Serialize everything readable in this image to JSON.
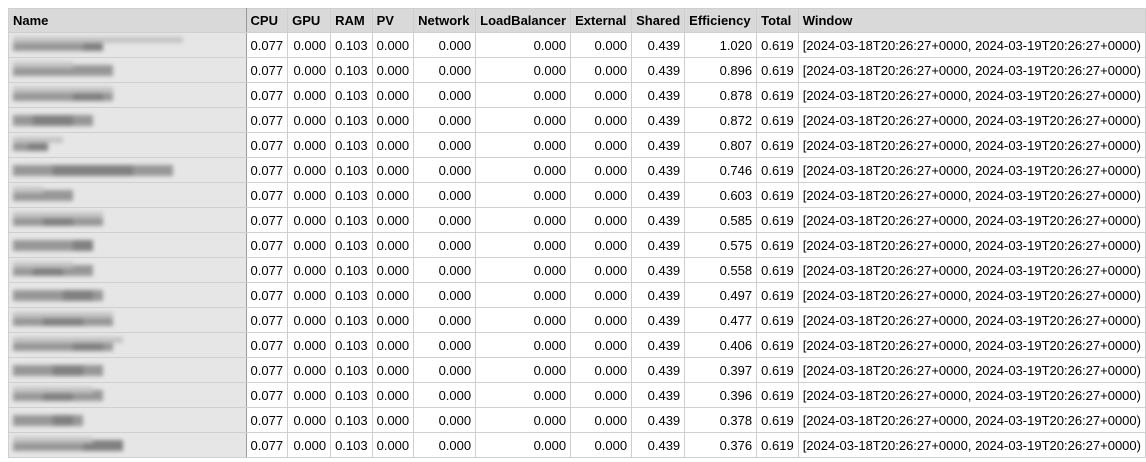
{
  "table": {
    "columns": [
      "Name",
      "CPU",
      "GPU",
      "RAM",
      "PV",
      "Network",
      "LoadBalancer",
      "External",
      "Shared",
      "Efficiency",
      "Total",
      "Window"
    ],
    "rows": [
      {
        "cpu": "0.077",
        "gpu": "0.000",
        "ram": "0.103",
        "pv": "0.000",
        "network": "0.000",
        "loadbalancer": "0.000",
        "external": "0.000",
        "shared": "0.439",
        "efficiency": "1.020",
        "total": "0.619",
        "window": "[2024-03-18T20:26:27+0000, 2024-03-19T20:26:27+0000)"
      },
      {
        "cpu": "0.077",
        "gpu": "0.000",
        "ram": "0.103",
        "pv": "0.000",
        "network": "0.000",
        "loadbalancer": "0.000",
        "external": "0.000",
        "shared": "0.439",
        "efficiency": "0.896",
        "total": "0.619",
        "window": "[2024-03-18T20:26:27+0000, 2024-03-19T20:26:27+0000)"
      },
      {
        "cpu": "0.077",
        "gpu": "0.000",
        "ram": "0.103",
        "pv": "0.000",
        "network": "0.000",
        "loadbalancer": "0.000",
        "external": "0.000",
        "shared": "0.439",
        "efficiency": "0.878",
        "total": "0.619",
        "window": "[2024-03-18T20:26:27+0000, 2024-03-19T20:26:27+0000)"
      },
      {
        "cpu": "0.077",
        "gpu": "0.000",
        "ram": "0.103",
        "pv": "0.000",
        "network": "0.000",
        "loadbalancer": "0.000",
        "external": "0.000",
        "shared": "0.439",
        "efficiency": "0.872",
        "total": "0.619",
        "window": "[2024-03-18T20:26:27+0000, 2024-03-19T20:26:27+0000)"
      },
      {
        "cpu": "0.077",
        "gpu": "0.000",
        "ram": "0.103",
        "pv": "0.000",
        "network": "0.000",
        "loadbalancer": "0.000",
        "external": "0.000",
        "shared": "0.439",
        "efficiency": "0.807",
        "total": "0.619",
        "window": "[2024-03-18T20:26:27+0000, 2024-03-19T20:26:27+0000)"
      },
      {
        "cpu": "0.077",
        "gpu": "0.000",
        "ram": "0.103",
        "pv": "0.000",
        "network": "0.000",
        "loadbalancer": "0.000",
        "external": "0.000",
        "shared": "0.439",
        "efficiency": "0.746",
        "total": "0.619",
        "window": "[2024-03-18T20:26:27+0000, 2024-03-19T20:26:27+0000)"
      },
      {
        "cpu": "0.077",
        "gpu": "0.000",
        "ram": "0.103",
        "pv": "0.000",
        "network": "0.000",
        "loadbalancer": "0.000",
        "external": "0.000",
        "shared": "0.439",
        "efficiency": "0.603",
        "total": "0.619",
        "window": "[2024-03-18T20:26:27+0000, 2024-03-19T20:26:27+0000)"
      },
      {
        "cpu": "0.077",
        "gpu": "0.000",
        "ram": "0.103",
        "pv": "0.000",
        "network": "0.000",
        "loadbalancer": "0.000",
        "external": "0.000",
        "shared": "0.439",
        "efficiency": "0.585",
        "total": "0.619",
        "window": "[2024-03-18T20:26:27+0000, 2024-03-19T20:26:27+0000)"
      },
      {
        "cpu": "0.077",
        "gpu": "0.000",
        "ram": "0.103",
        "pv": "0.000",
        "network": "0.000",
        "loadbalancer": "0.000",
        "external": "0.000",
        "shared": "0.439",
        "efficiency": "0.575",
        "total": "0.619",
        "window": "[2024-03-18T20:26:27+0000, 2024-03-19T20:26:27+0000)"
      },
      {
        "cpu": "0.077",
        "gpu": "0.000",
        "ram": "0.103",
        "pv": "0.000",
        "network": "0.000",
        "loadbalancer": "0.000",
        "external": "0.000",
        "shared": "0.439",
        "efficiency": "0.558",
        "total": "0.619",
        "window": "[2024-03-18T20:26:27+0000, 2024-03-19T20:26:27+0000)"
      },
      {
        "cpu": "0.077",
        "gpu": "0.000",
        "ram": "0.103",
        "pv": "0.000",
        "network": "0.000",
        "loadbalancer": "0.000",
        "external": "0.000",
        "shared": "0.439",
        "efficiency": "0.497",
        "total": "0.619",
        "window": "[2024-03-18T20:26:27+0000, 2024-03-19T20:26:27+0000)"
      },
      {
        "cpu": "0.077",
        "gpu": "0.000",
        "ram": "0.103",
        "pv": "0.000",
        "network": "0.000",
        "loadbalancer": "0.000",
        "external": "0.000",
        "shared": "0.439",
        "efficiency": "0.477",
        "total": "0.619",
        "window": "[2024-03-18T20:26:27+0000, 2024-03-19T20:26:27+0000)"
      },
      {
        "cpu": "0.077",
        "gpu": "0.000",
        "ram": "0.103",
        "pv": "0.000",
        "network": "0.000",
        "loadbalancer": "0.000",
        "external": "0.000",
        "shared": "0.439",
        "efficiency": "0.406",
        "total": "0.619",
        "window": "[2024-03-18T20:26:27+0000, 2024-03-19T20:26:27+0000)"
      },
      {
        "cpu": "0.077",
        "gpu": "0.000",
        "ram": "0.103",
        "pv": "0.000",
        "network": "0.000",
        "loadbalancer": "0.000",
        "external": "0.000",
        "shared": "0.439",
        "efficiency": "0.397",
        "total": "0.619",
        "window": "[2024-03-18T20:26:27+0000, 2024-03-19T20:26:27+0000)"
      },
      {
        "cpu": "0.077",
        "gpu": "0.000",
        "ram": "0.103",
        "pv": "0.000",
        "network": "0.000",
        "loadbalancer": "0.000",
        "external": "0.000",
        "shared": "0.439",
        "efficiency": "0.396",
        "total": "0.619",
        "window": "[2024-03-18T20:26:27+0000, 2024-03-19T20:26:27+0000)"
      },
      {
        "cpu": "0.077",
        "gpu": "0.000",
        "ram": "0.103",
        "pv": "0.000",
        "network": "0.000",
        "loadbalancer": "0.000",
        "external": "0.000",
        "shared": "0.439",
        "efficiency": "0.378",
        "total": "0.619",
        "window": "[2024-03-18T20:26:27+0000, 2024-03-19T20:26:27+0000)"
      },
      {
        "cpu": "0.077",
        "gpu": "0.000",
        "ram": "0.103",
        "pv": "0.000",
        "network": "0.000",
        "loadbalancer": "0.000",
        "external": "0.000",
        "shared": "0.439",
        "efficiency": "0.376",
        "total": "0.619",
        "window": "[2024-03-18T20:26:27+0000, 2024-03-19T20:26:27+0000)"
      }
    ]
  }
}
